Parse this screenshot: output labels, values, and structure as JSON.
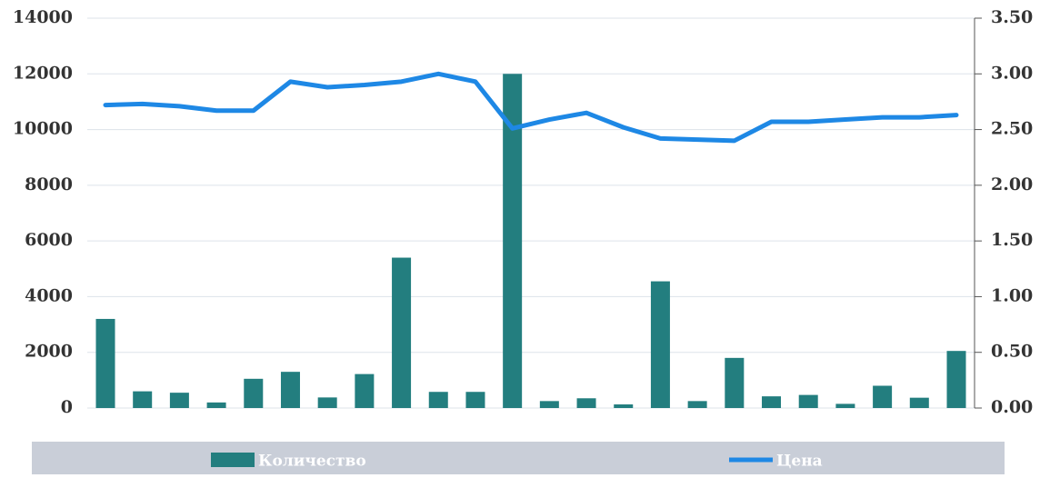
{
  "chart_data": {
    "type": "bar-line",
    "categories": [
      null,
      null,
      null,
      null,
      null,
      null,
      null,
      null,
      null,
      null,
      null,
      null,
      null,
      null,
      null,
      null,
      null,
      null,
      null,
      null,
      null,
      null,
      null,
      null
    ],
    "series": [
      {
        "name": "Количество",
        "type": "bar",
        "color": "#237e7f",
        "values": [
          3200,
          600,
          550,
          200,
          1050,
          1300,
          380,
          1220,
          5400,
          580,
          580,
          12000,
          250,
          350,
          130,
          4550,
          250,
          1800,
          420,
          470,
          150,
          800,
          370,
          2050
        ]
      },
      {
        "name": "Цена",
        "type": "line",
        "axis": "y2",
        "color": "#1e88e5",
        "values": [
          2.72,
          2.73,
          2.71,
          2.67,
          2.67,
          2.93,
          2.88,
          2.9,
          2.93,
          3.0,
          2.93,
          2.51,
          2.59,
          2.65,
          2.52,
          2.42,
          2.41,
          2.4,
          2.57,
          2.57,
          2.59,
          2.61,
          2.61,
          2.63
        ]
      }
    ],
    "ylim": [
      0,
      14000
    ],
    "yticks": [
      0,
      2000,
      4000,
      6000,
      8000,
      10000,
      12000,
      14000
    ],
    "y2lim": [
      0,
      3.5
    ],
    "y2ticks": [
      {
        "value": 0,
        "label": "0.00"
      },
      {
        "value": 0.5,
        "label": "0.50"
      },
      {
        "value": 1,
        "label": "1.00"
      },
      {
        "value": 1.5,
        "label": "1.50"
      },
      {
        "value": 2,
        "label": "2.00"
      },
      {
        "value": 2.5,
        "label": "2.50"
      },
      {
        "value": 3,
        "label": "3.00"
      },
      {
        "value": 3.5,
        "label": "3.50"
      }
    ],
    "grid": true,
    "legend": "bottom"
  }
}
